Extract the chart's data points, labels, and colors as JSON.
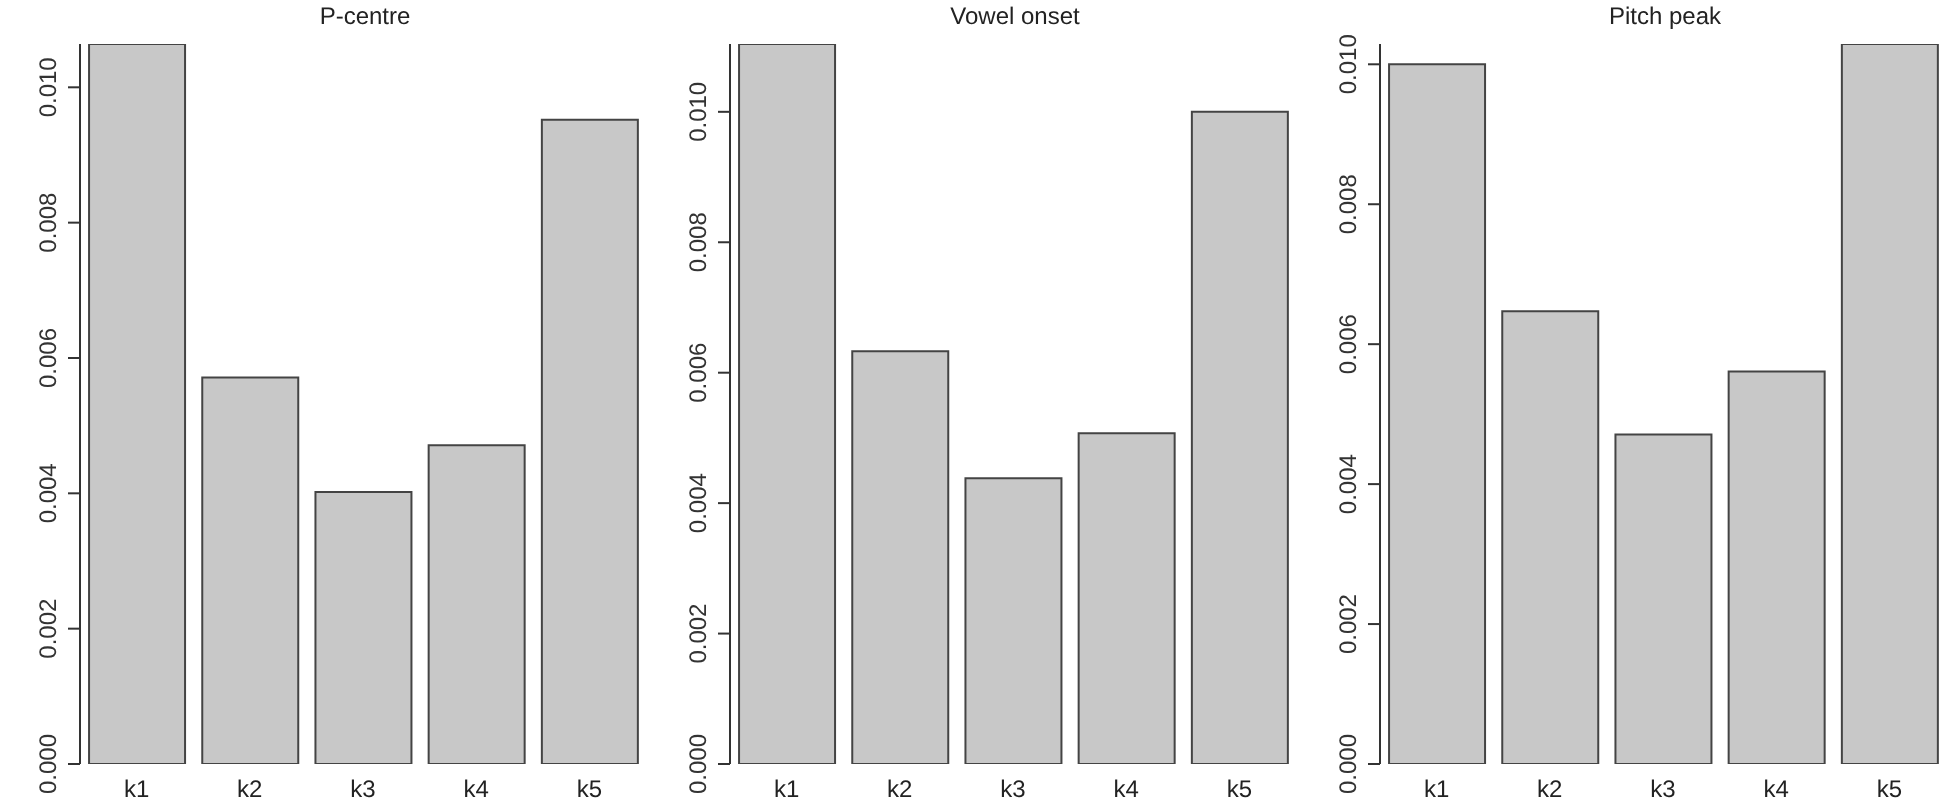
{
  "chart_data": [
    {
      "type": "bar",
      "title": "P-centre",
      "categories": [
        "k1",
        "k2",
        "k3",
        "k4",
        "k5"
      ],
      "values": [
        0.01064,
        0.00571,
        0.00402,
        0.00471,
        0.00952
      ],
      "color": "#c8c8c8",
      "ylim": [
        0,
        0.01064
      ],
      "yticks": [
        {
          "value": 0,
          "label": "0.000"
        },
        {
          "value": 0.002,
          "label": "0.002"
        },
        {
          "value": 0.004,
          "label": "0.004"
        },
        {
          "value": 0.006,
          "label": "0.006"
        },
        {
          "value": 0.008,
          "label": "0.008"
        },
        {
          "value": 0.01,
          "label": "0.010"
        }
      ]
    },
    {
      "type": "bar",
      "title": "Vowel onset",
      "categories": [
        "k1",
        "k2",
        "k3",
        "k4",
        "k5"
      ],
      "values": [
        0.01104,
        0.00633,
        0.00438,
        0.00507,
        0.01
      ],
      "color": "#c8c8c8",
      "ylim": [
        0,
        0.01104
      ],
      "yticks": [
        {
          "value": 0,
          "label": "0.000"
        },
        {
          "value": 0.002,
          "label": "0.002"
        },
        {
          "value": 0.004,
          "label": "0.004"
        },
        {
          "value": 0.006,
          "label": "0.006"
        },
        {
          "value": 0.008,
          "label": "0.008"
        },
        {
          "value": 0.01,
          "label": "0.010"
        }
      ]
    },
    {
      "type": "bar",
      "title": "Pitch peak",
      "categories": [
        "k1",
        "k2",
        "k3",
        "k4",
        "k5"
      ],
      "values": [
        0.01,
        0.00647,
        0.00471,
        0.00561,
        0.01029
      ],
      "color": "#c8c8c8",
      "ylim": [
        0,
        0.01029
      ],
      "yticks": [
        {
          "value": 0,
          "label": "0.000"
        },
        {
          "value": 0.002,
          "label": "0.002"
        },
        {
          "value": 0.004,
          "label": "0.004"
        },
        {
          "value": 0.006,
          "label": "0.006"
        },
        {
          "value": 0.008,
          "label": "0.008"
        },
        {
          "value": 0.01,
          "label": "0.010"
        }
      ]
    }
  ]
}
